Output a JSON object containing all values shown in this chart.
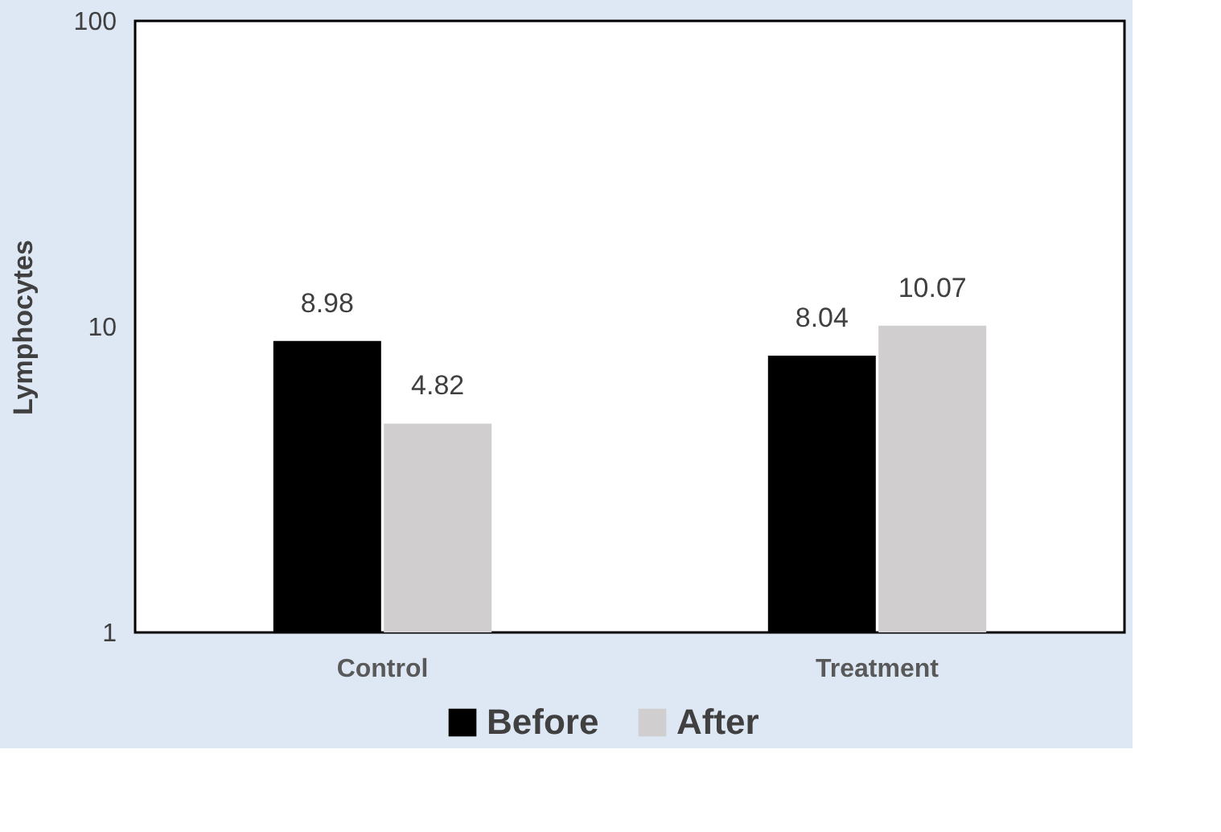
{
  "chart_data": {
    "type": "bar",
    "ylabel": "Lymphocytes",
    "categories": [
      "Control",
      "Treatment"
    ],
    "series": [
      {
        "name": "Before",
        "color": "#000000",
        "values": [
          8.98,
          8.04
        ]
      },
      {
        "name": "After",
        "color": "#d0cece",
        "values": [
          4.82,
          10.07
        ]
      }
    ],
    "log": true,
    "ylim": [
      1,
      100
    ],
    "yticks": [
      1,
      10,
      100
    ],
    "grid": false,
    "legend": "bottom",
    "data_labels": true
  }
}
